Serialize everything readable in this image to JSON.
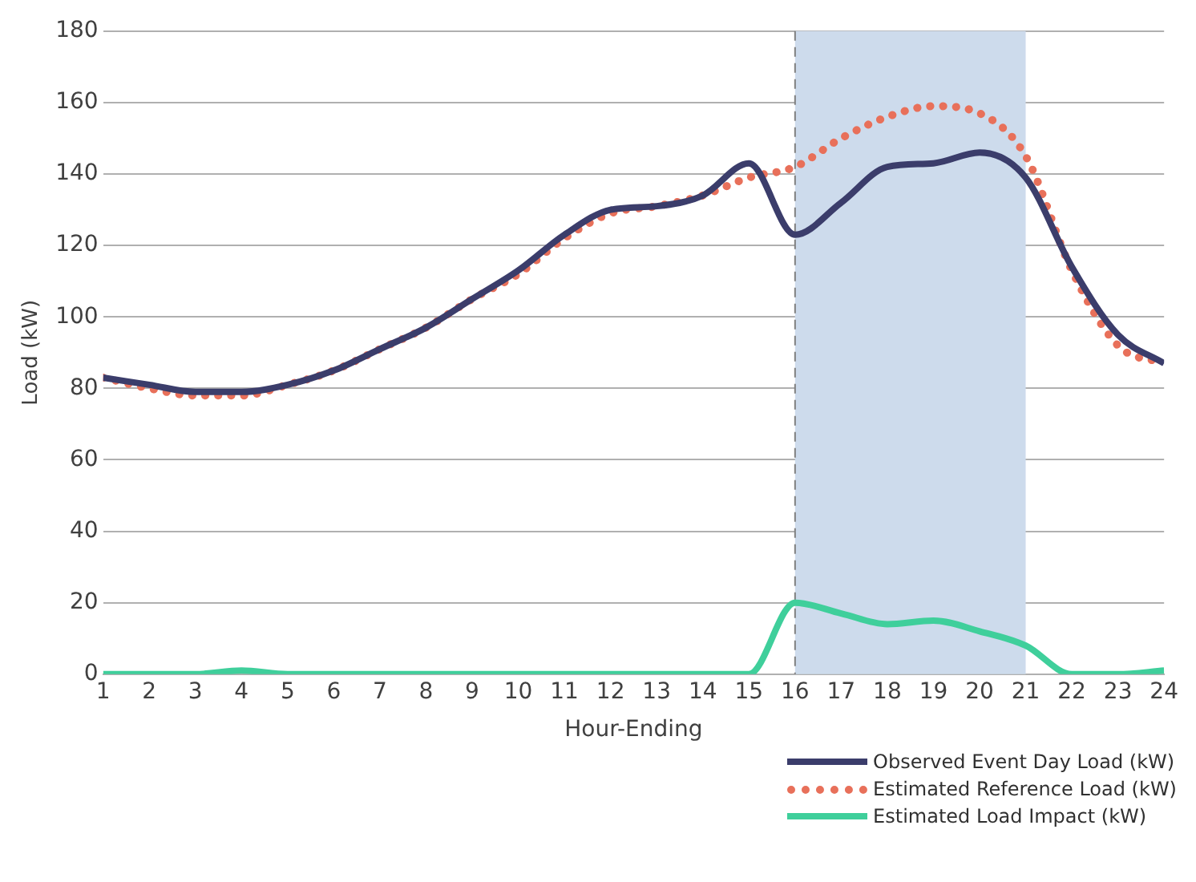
{
  "chart_data": {
    "type": "line",
    "xlabel": "Hour-Ending",
    "ylabel": "Load (kW)",
    "x": [
      1,
      2,
      3,
      4,
      5,
      6,
      7,
      8,
      9,
      10,
      11,
      12,
      13,
      14,
      15,
      16,
      17,
      18,
      19,
      20,
      21,
      22,
      23,
      24
    ],
    "xlim": [
      1,
      24
    ],
    "xticks": [
      1,
      2,
      3,
      4,
      5,
      6,
      7,
      8,
      9,
      10,
      11,
      12,
      13,
      14,
      15,
      16,
      17,
      18,
      19,
      20,
      21,
      22,
      23,
      24
    ],
    "ylim": [
      0,
      180
    ],
    "yticks": [
      0,
      20,
      40,
      60,
      80,
      100,
      120,
      140,
      160,
      180
    ],
    "grid": "y",
    "legend": "bottom right",
    "marker": "none",
    "series": [
      {
        "name": "Observed Event Day Load (kW)",
        "color": "#3b3d6b",
        "line_style": "solid",
        "values": [
          83,
          81,
          79,
          79,
          81,
          85,
          91,
          97,
          105,
          113,
          123,
          130,
          131,
          134,
          143,
          123,
          132,
          142,
          143,
          146,
          139,
          114,
          95,
          87
        ]
      },
      {
        "name": "Estimated Reference Load (kW)",
        "color": "#e8705a",
        "line_style": "dotted",
        "values": [
          83,
          80,
          78,
          78,
          81,
          85,
          91,
          97,
          105,
          112,
          122,
          129,
          131,
          134,
          139,
          142,
          150,
          156,
          159,
          157,
          145,
          113,
          92,
          87
        ]
      },
      {
        "name": "Estimated Load Impact (kW)",
        "color": "#3fcf9b",
        "line_style": "solid",
        "values": [
          0,
          0,
          0,
          1,
          0,
          0,
          0,
          0,
          0,
          0,
          0,
          0,
          0,
          0,
          0,
          20,
          17,
          14,
          15,
          12,
          8,
          0,
          0,
          1
        ]
      }
    ],
    "bands": [
      {
        "axis": "x",
        "from": 16,
        "to": 21,
        "color": "#cddbec"
      }
    ],
    "ref_lines": [
      {
        "axis": "x",
        "value": 16,
        "color": "#808080",
        "line_style": "dashed"
      }
    ]
  }
}
